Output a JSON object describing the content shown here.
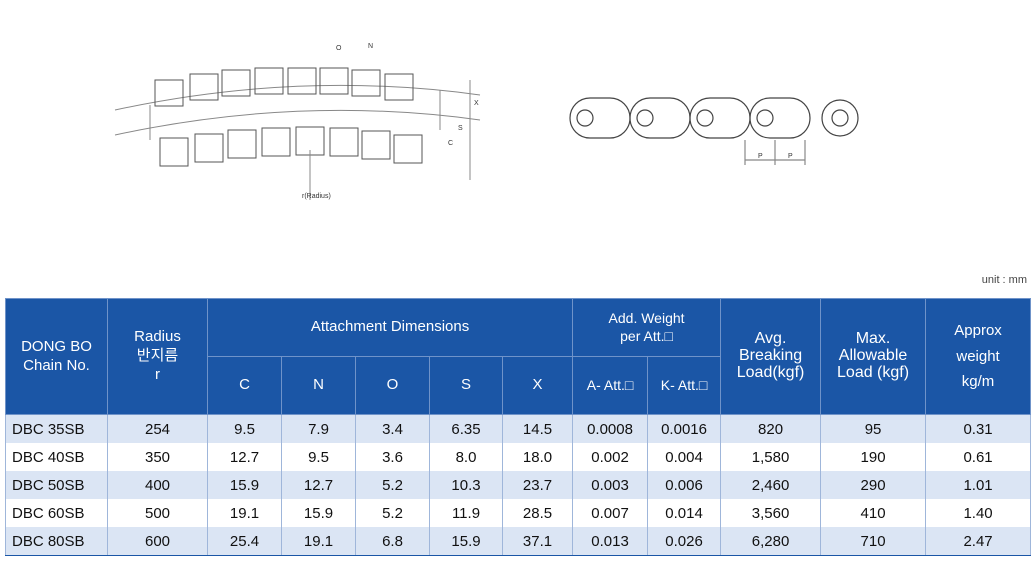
{
  "diagram_left": {
    "labels": [
      "O",
      "N",
      "X",
      "S",
      "C",
      "r(Radius)"
    ]
  },
  "diagram_right": {
    "labels": [
      "P",
      "P"
    ]
  },
  "unit": "unit : mm",
  "table": {
    "header": {
      "chain_no": [
        "DONG BO",
        "Chain No."
      ],
      "radius": [
        "Radius",
        "반지름",
        "r"
      ],
      "attachment": "Attachment Dimensions",
      "attachment_cols": [
        "C",
        "N",
        "O",
        "S",
        "X"
      ],
      "add_weight": [
        "Add. Weight",
        "per  Att.□"
      ],
      "add_weight_cols": [
        "A- Att.□",
        "K- Att.□"
      ],
      "breaking": [
        "Avg.",
        "Breaking",
        "Load(kgf)"
      ],
      "allowable": [
        "Max.",
        "Allowable",
        "Load  (kgf)"
      ],
      "weight": [
        "Approx",
        "weight",
        "kg/m"
      ]
    },
    "rows": [
      [
        "DBC 35SB",
        "254",
        "9.5",
        "7.9",
        "3.4",
        "6.35",
        "14.5",
        "0.0008",
        "0.0016",
        "820",
        "95",
        "0.31"
      ],
      [
        "DBC 40SB",
        "350",
        "12.7",
        "9.5",
        "3.6",
        "8.0",
        "18.0",
        "0.002",
        "0.004",
        "1,580",
        "190",
        "0.61"
      ],
      [
        "DBC 50SB",
        "400",
        "15.9",
        "12.7",
        "5.2",
        "10.3",
        "23.7",
        "0.003",
        "0.006",
        "2,460",
        "290",
        "1.01"
      ],
      [
        "DBC 60SB",
        "500",
        "19.1",
        "15.9",
        "5.2",
        "11.9",
        "28.5",
        "0.007",
        "0.014",
        "3,560",
        "410",
        "1.40"
      ],
      [
        "DBC 80SB",
        "600",
        "25.4",
        "19.1",
        "6.8",
        "15.9",
        "37.1",
        "0.013",
        "0.026",
        "6,280",
        "710",
        "2.47"
      ]
    ]
  }
}
